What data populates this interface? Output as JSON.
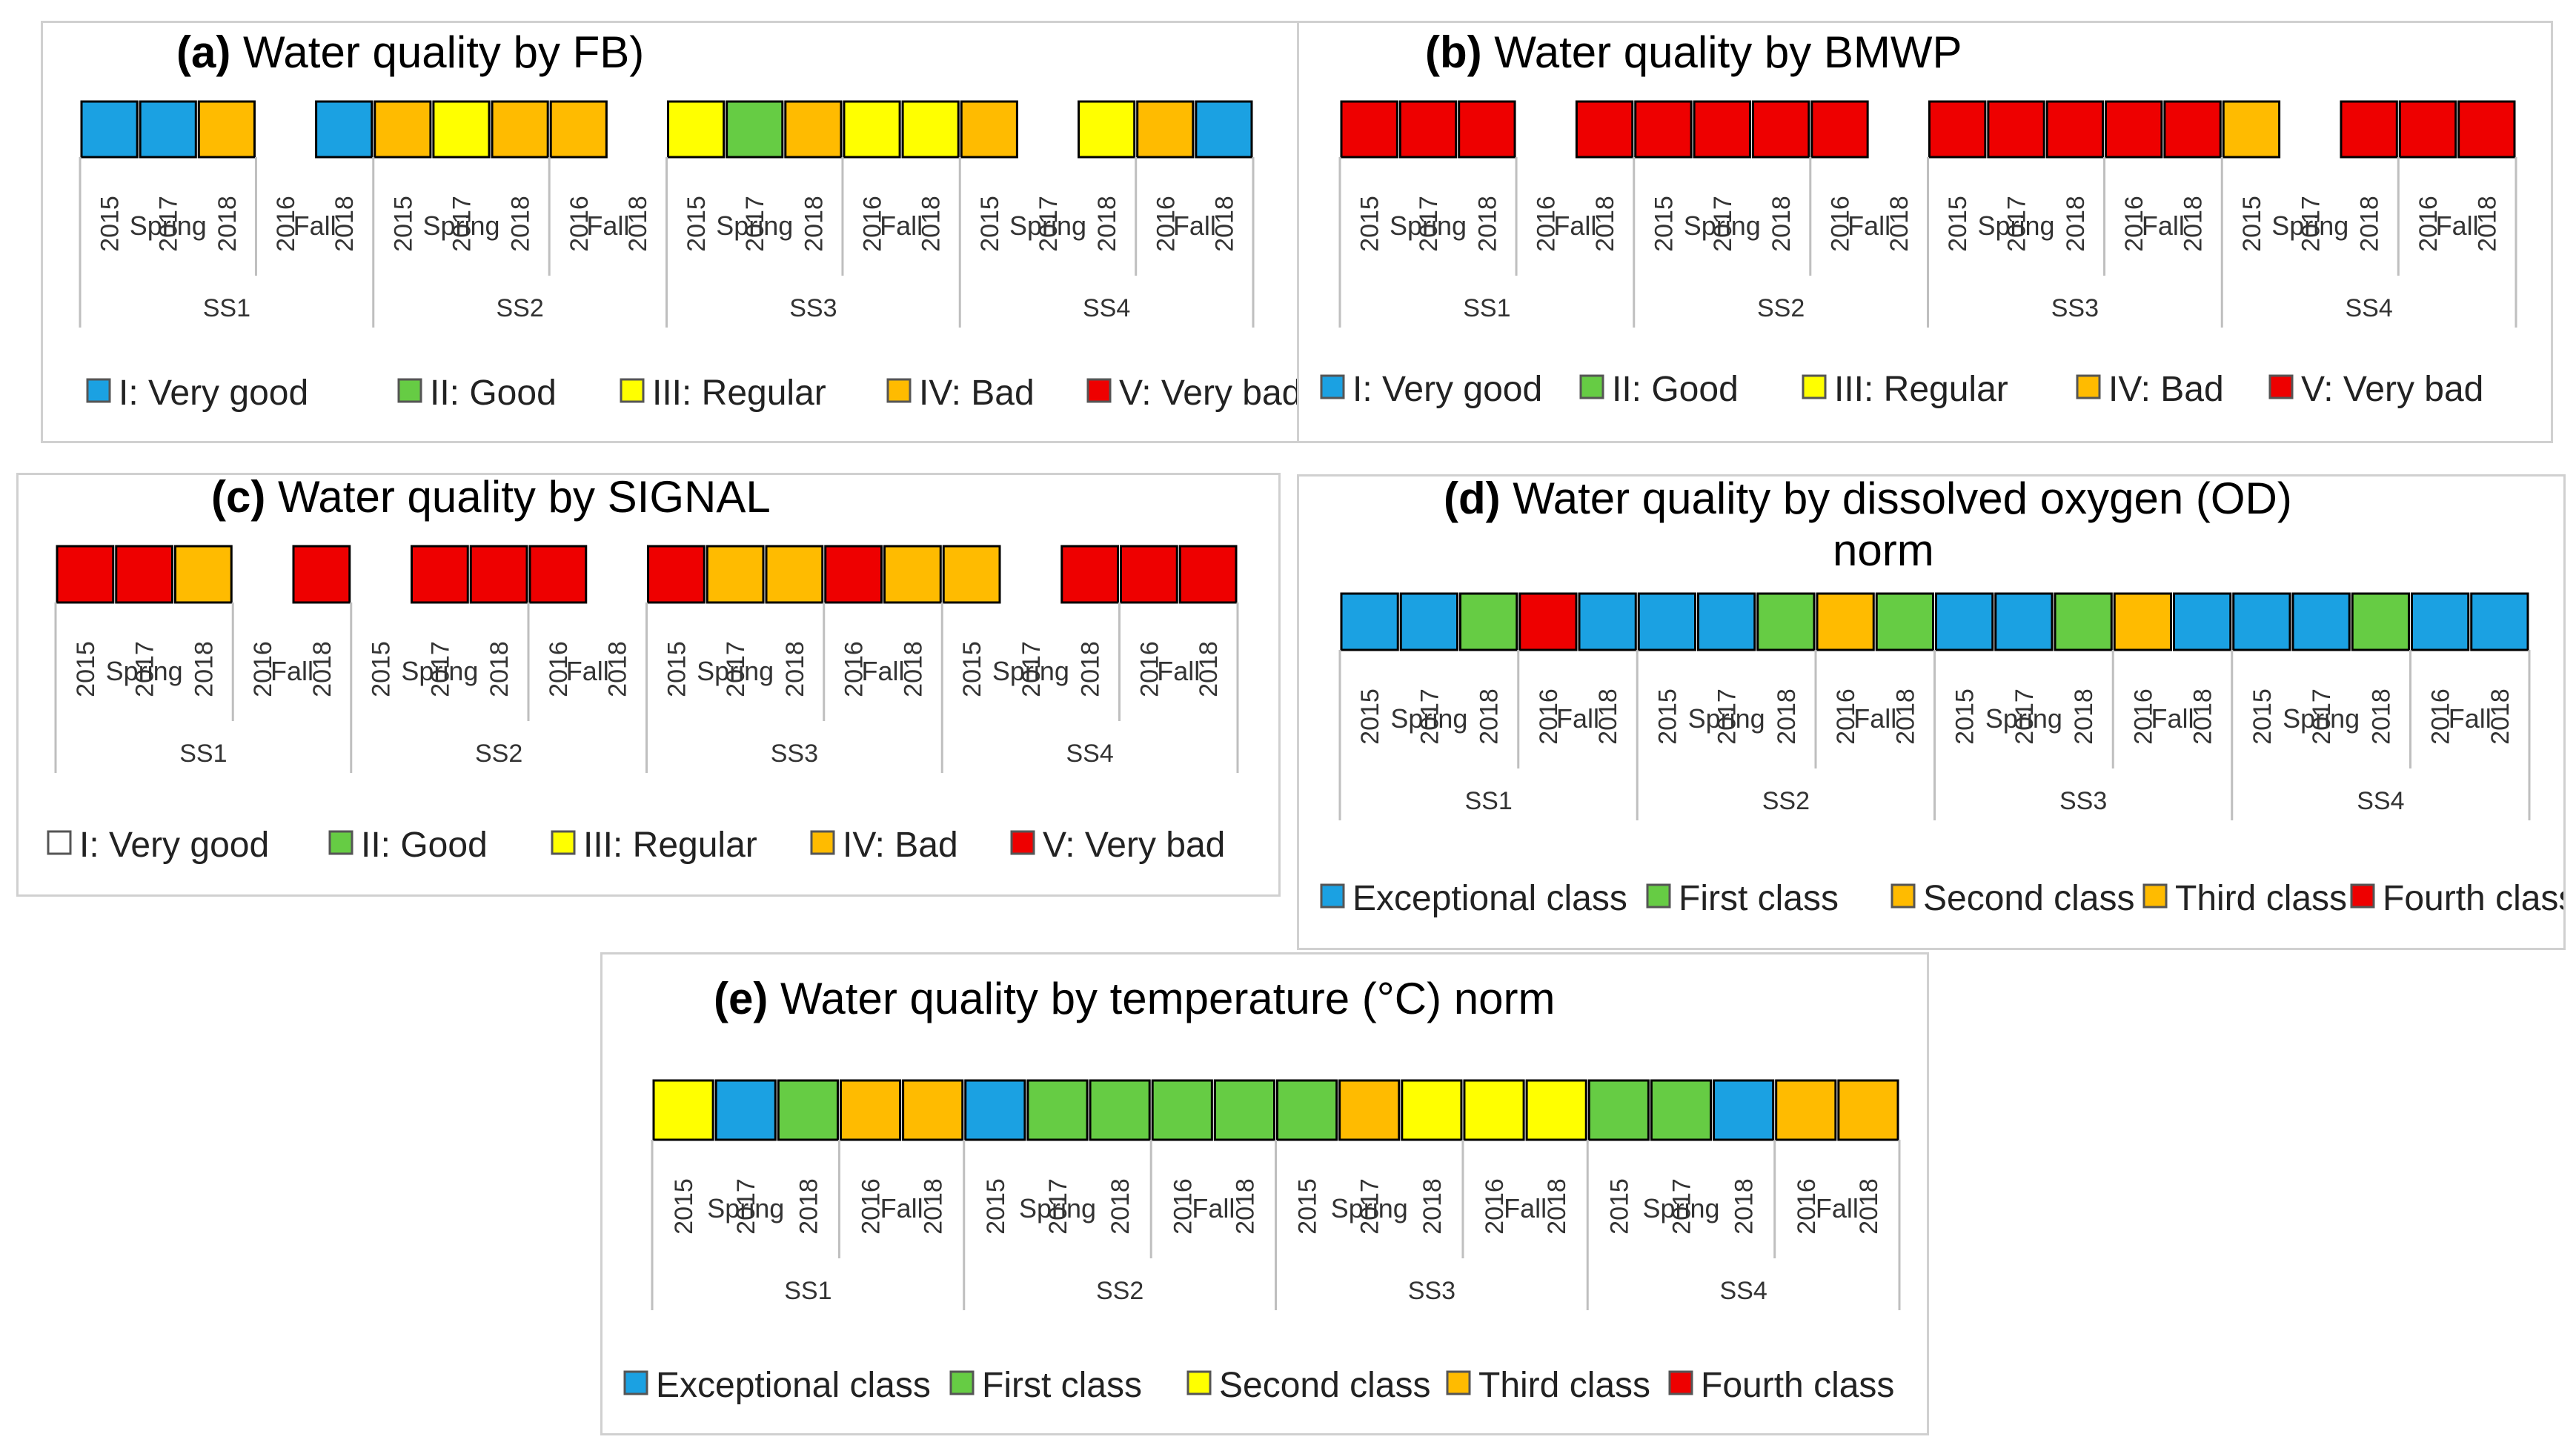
{
  "colors": {
    "blue": "#1BA1E2",
    "green": "#66CC44",
    "yellow": "#FFFF00",
    "orange": "#FFBB00",
    "red": "#EE0000",
    "white": "#FFFFFF",
    "separator": "#BFBFBF"
  },
  "chart_data": [
    {
      "id": "a",
      "type": "bar",
      "title_label": "(a)",
      "title_text": "Water quality by FB)",
      "sites": [
        "SS1",
        "SS2",
        "SS3",
        "SS4"
      ],
      "seasons": [
        "Spring",
        "Fall"
      ],
      "years": {
        "Spring": [
          "2015",
          "2017",
          "2018"
        ],
        "Fall": [
          "2016",
          "2018"
        ]
      },
      "classes": [
        {
          "blue": 0,
          "label": "I: Very good",
          "color": "blue"
        },
        {
          "label": "II: Good",
          "color": "green"
        },
        {
          "label": "III: Regular",
          "color": "yellow"
        },
        {
          "label": "IV: Bad",
          "color": "orange"
        },
        {
          "label": "V: Very bad",
          "color": "red"
        }
      ],
      "values": [
        [
          "blue",
          "blue",
          "orange",
          null,
          "blue"
        ],
        [
          "orange",
          "yellow",
          "orange",
          "orange",
          null
        ],
        [
          "yellow",
          "green",
          "orange",
          "yellow",
          "yellow"
        ],
        [
          "orange",
          null,
          "yellow",
          "orange",
          "blue"
        ]
      ]
    },
    {
      "id": "b",
      "type": "bar",
      "title_label": "(b)",
      "title_text": "Water quality by BMWP",
      "sites": [
        "SS1",
        "SS2",
        "SS3",
        "SS4"
      ],
      "seasons": [
        "Spring",
        "Fall"
      ],
      "years": {
        "Spring": [
          "2015",
          "2017",
          "2018"
        ],
        "Fall": [
          "2016",
          "2018"
        ]
      },
      "classes": [
        {
          "label": "I: Very good",
          "color": "blue"
        },
        {
          "label": "II: Good",
          "color": "green"
        },
        {
          "label": "III: Regular",
          "color": "yellow"
        },
        {
          "label": "IV: Bad",
          "color": "orange"
        },
        {
          "label": "V: Very bad",
          "color": "red"
        }
      ],
      "values": [
        [
          "red",
          "red",
          "red",
          null,
          "red"
        ],
        [
          "red",
          "red",
          "red",
          "red",
          null
        ],
        [
          "red",
          "red",
          "red",
          "red",
          "red"
        ],
        [
          "orange",
          null,
          "red",
          "red",
          "red"
        ]
      ]
    },
    {
      "id": "c",
      "type": "bar",
      "title_label": "(c)",
      "title_text": "Water quality by SIGNAL",
      "sites": [
        "SS1",
        "SS2",
        "SS3",
        "SS4"
      ],
      "seasons": [
        "Spring",
        "Fall"
      ],
      "years": {
        "Spring": [
          "2015",
          "2017",
          "2018"
        ],
        "Fall": [
          "2016",
          "2018"
        ]
      },
      "classes": [
        {
          "label": "I: Very good",
          "color": "white"
        },
        {
          "label": "II: Good",
          "color": "green"
        },
        {
          "label": "III: Regular",
          "color": "yellow"
        },
        {
          "label": "IV: Bad",
          "color": "orange"
        },
        {
          "label": "V: Very bad",
          "color": "red"
        }
      ],
      "values": [
        [
          "red",
          "red",
          "orange",
          null,
          "red"
        ],
        [
          null,
          "red",
          "red",
          "red",
          null
        ],
        [
          "red",
          "orange",
          "orange",
          "red",
          "orange"
        ],
        [
          "orange",
          null,
          "red",
          "red",
          "red"
        ]
      ]
    },
    {
      "id": "d",
      "type": "bar",
      "title_label": "(d)",
      "title_text": "Water quality by dissolved oxygen (OD)",
      "title_line2": "norm",
      "sites": [
        "SS1",
        "SS2",
        "SS3",
        "SS4"
      ],
      "seasons": [
        "Spring",
        "Fall"
      ],
      "years": {
        "Spring": [
          "2015",
          "2017",
          "2018"
        ],
        "Fall": [
          "2016",
          "2018"
        ]
      },
      "classes": [
        {
          "label": "Exceptional class",
          "color": "blue"
        },
        {
          "label": "First class",
          "color": "green"
        },
        {
          "label": "Second class",
          "color": "orange"
        },
        {
          "label": "Third class",
          "color": "orange"
        },
        {
          "label": "Fourth class",
          "color": "red"
        }
      ],
      "values": [
        [
          "blue",
          "blue",
          "green",
          "red",
          "blue"
        ],
        [
          "blue",
          "blue",
          "green",
          "orange",
          "green"
        ],
        [
          "blue",
          "blue",
          "green",
          "orange",
          "blue"
        ],
        [
          "blue",
          "blue",
          "green",
          "blue",
          "blue"
        ]
      ]
    },
    {
      "id": "e",
      "type": "bar",
      "title_label": "(e)",
      "title_text": "Water quality by temperature (°C) norm",
      "sites": [
        "SS1",
        "SS2",
        "SS3",
        "SS4"
      ],
      "seasons": [
        "Spring",
        "Fall"
      ],
      "years": {
        "Spring": [
          "2015",
          "2017",
          "2018"
        ],
        "Fall": [
          "2016",
          "2018"
        ]
      },
      "classes": [
        {
          "label": "Exceptional class",
          "color": "blue"
        },
        {
          "label": "First class",
          "color": "green"
        },
        {
          "label": "Second class",
          "color": "yellow"
        },
        {
          "label": "Third class",
          "color": "orange"
        },
        {
          "label": "Fourth class",
          "color": "red"
        }
      ],
      "values": [
        [
          "yellow",
          "blue",
          "green",
          "orange",
          "orange"
        ],
        [
          "blue",
          "green",
          "green",
          "green",
          "green"
        ],
        [
          "green",
          "orange",
          "yellow",
          "yellow",
          "yellow"
        ],
        [
          "green",
          "green",
          "blue",
          "orange",
          "orange"
        ]
      ]
    }
  ]
}
